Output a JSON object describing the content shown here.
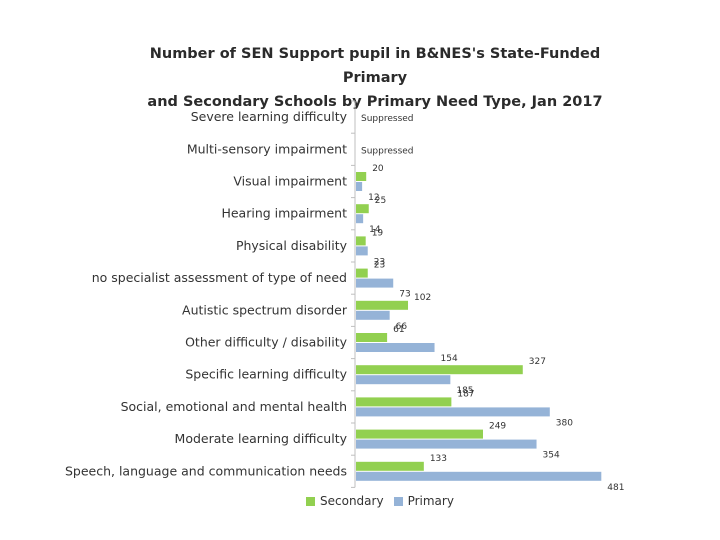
{
  "chart_data": {
    "type": "bar",
    "orientation": "horizontal",
    "title": "Number of SEN Support pupil in B&NES's State-Funded Primary and Secondary Schools by Primary Need Type, Jan 2017",
    "title_line1": "Number of SEN Support pupil in B&NES's State-Funded Primary",
    "title_line2": "and Secondary Schools by Primary Need Type, Jan 2017",
    "categories": [
      "Severe learning difficulty",
      "Multi-sensory impairment",
      "Visual impairment",
      "Hearing impairment",
      "Physical disability",
      "no specialist assessment of type of need",
      "Autistic spectrum disorder",
      "Other difficulty / disability",
      "Specific learning difficulty",
      "Social, emotional and mental health",
      "Moderate learning difficulty",
      "Speech, language and communication needs"
    ],
    "series": [
      {
        "name": "Secondary",
        "color": "#92d050",
        "values": [
          null,
          null,
          20,
          25,
          19,
          23,
          102,
          61,
          327,
          187,
          249,
          133
        ],
        "labels": [
          "Suppressed",
          "Suppressed",
          "20",
          "25",
          "19",
          "23",
          "102",
          "61",
          "327",
          "187",
          "249",
          "133"
        ]
      },
      {
        "name": "Primary",
        "color": "#95b3d7",
        "values": [
          null,
          null,
          12,
          14,
          23,
          73,
          66,
          154,
          185,
          380,
          354,
          481
        ],
        "labels": [
          "",
          "",
          "12",
          "14",
          "23",
          "73",
          "66",
          "154",
          "185",
          "380",
          "354",
          "481"
        ]
      }
    ],
    "xlim": [
      0,
      500
    ],
    "grid": false,
    "legend_position": "bottom"
  }
}
